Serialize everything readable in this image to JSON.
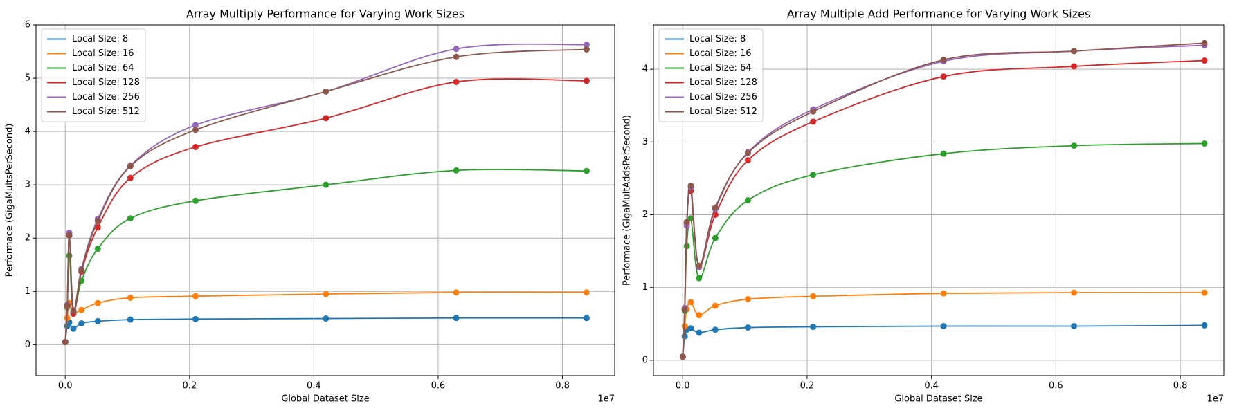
{
  "chart_data": [
    {
      "type": "line",
      "title": "Array Multiply Performance for Varying Work Sizes",
      "xlabel": "Global Dataset Size",
      "ylabel": "Performace (GigaMultsPerSecond)",
      "x_offset_label": "1e7",
      "x": [
        1024,
        32768,
        65536,
        131072,
        262144,
        524288,
        1048576,
        2097152,
        4194304,
        6291456,
        8388608
      ],
      "xlim": [
        -470000,
        8840000
      ],
      "xticks": [
        {
          "value": 0,
          "label": "0.0"
        },
        {
          "value": 2000000,
          "label": "0.2"
        },
        {
          "value": 4000000,
          "label": "0.4"
        },
        {
          "value": 6000000,
          "label": "0.6"
        },
        {
          "value": 8000000,
          "label": "0.8"
        }
      ],
      "ylim": [
        -0.58,
        6.0
      ],
      "yticks": [
        0,
        1,
        2,
        3,
        4,
        5,
        6
      ],
      "grid": true,
      "legend": "upper-left",
      "series": [
        {
          "name": "Local Size: 8",
          "color": "#1f77b4",
          "values": [
            0.05,
            0.35,
            0.42,
            0.3,
            0.4,
            0.44,
            0.47,
            0.48,
            0.49,
            0.5,
            0.5
          ]
        },
        {
          "name": "Local Size: 16",
          "color": "#ff7f0e",
          "values": [
            0.05,
            0.5,
            0.78,
            0.6,
            0.65,
            0.78,
            0.88,
            0.91,
            0.95,
            0.98,
            0.98
          ]
        },
        {
          "name": "Local Size: 64",
          "color": "#2ca02c",
          "values": [
            0.05,
            0.7,
            1.67,
            0.62,
            1.2,
            1.8,
            2.37,
            2.7,
            3.0,
            3.27,
            3.26
          ]
        },
        {
          "name": "Local Size: 128",
          "color": "#d62728",
          "values": [
            0.05,
            0.72,
            2.05,
            0.58,
            1.37,
            2.2,
            3.13,
            3.71,
            4.25,
            4.93,
            4.95
          ]
        },
        {
          "name": "Local Size: 256",
          "color": "#9467bd",
          "values": [
            0.05,
            0.75,
            2.1,
            0.65,
            1.42,
            2.36,
            3.36,
            4.12,
            4.75,
            5.55,
            5.63
          ]
        },
        {
          "name": "Local Size: 512",
          "color": "#8c564b",
          "values": [
            0.05,
            0.73,
            2.05,
            0.63,
            1.4,
            2.32,
            3.35,
            4.03,
            4.75,
            5.4,
            5.54
          ]
        }
      ]
    },
    {
      "type": "line",
      "title": "Array Multiple Add Performance for Varying Work Sizes",
      "xlabel": "Global Dataset Size",
      "ylabel": "Performace (GigaMultAddsPerSecond)",
      "x_offset_label": "1e7",
      "x": [
        1024,
        32768,
        65536,
        131072,
        262144,
        524288,
        1048576,
        2097152,
        4194304,
        6291456,
        8388608
      ],
      "xlim": [
        -470000,
        8700000
      ],
      "xticks": [
        {
          "value": 0,
          "label": "0.0"
        },
        {
          "value": 2000000,
          "label": "0.2"
        },
        {
          "value": 4000000,
          "label": "0.4"
        },
        {
          "value": 6000000,
          "label": "0.6"
        },
        {
          "value": 8000000,
          "label": "0.8"
        }
      ],
      "ylim": [
        -0.21,
        4.61
      ],
      "yticks": [
        0,
        1,
        2,
        3,
        4
      ],
      "grid": true,
      "legend": "upper-left",
      "series": [
        {
          "name": "Local Size: 8",
          "color": "#1f77b4",
          "values": [
            0.05,
            0.33,
            0.42,
            0.44,
            0.38,
            0.42,
            0.45,
            0.46,
            0.47,
            0.47,
            0.48
          ]
        },
        {
          "name": "Local Size: 16",
          "color": "#ff7f0e",
          "values": [
            0.05,
            0.47,
            0.7,
            0.8,
            0.62,
            0.75,
            0.84,
            0.88,
            0.92,
            0.93,
            0.93
          ]
        },
        {
          "name": "Local Size: 64",
          "color": "#2ca02c",
          "values": [
            0.05,
            0.68,
            1.57,
            1.95,
            1.13,
            1.68,
            2.2,
            2.55,
            2.84,
            2.95,
            2.98
          ]
        },
        {
          "name": "Local Size: 128",
          "color": "#d62728",
          "values": [
            0.05,
            0.7,
            1.88,
            2.33,
            1.28,
            2.0,
            2.75,
            3.28,
            3.9,
            4.04,
            4.12
          ]
        },
        {
          "name": "Local Size: 256",
          "color": "#9467bd",
          "values": [
            0.05,
            0.72,
            1.85,
            2.38,
            1.28,
            2.08,
            2.86,
            3.45,
            4.11,
            4.25,
            4.33
          ]
        },
        {
          "name": "Local Size: 512",
          "color": "#8c564b",
          "values": [
            0.05,
            0.7,
            1.9,
            2.4,
            1.3,
            2.1,
            2.85,
            3.42,
            4.13,
            4.25,
            4.36
          ]
        }
      ]
    }
  ]
}
